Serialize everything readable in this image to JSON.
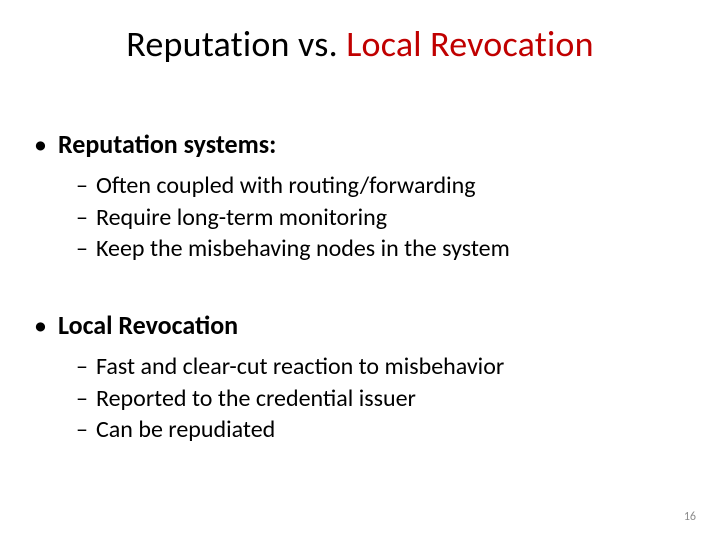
{
  "title": {
    "part1": "Reputation vs. ",
    "part2": "Local Revocation",
    "color_part1": "#000000",
    "color_part2": "#c00000",
    "fontsize": 36
  },
  "sections": [
    {
      "header": "Reputation systems:",
      "items": [
        "Often coupled with routing/forwarding",
        "Require long-term monitoring",
        "Keep the misbehaving nodes in the system"
      ]
    },
    {
      "header": "Local Revocation",
      "items": [
        "Fast and clear-cut reaction to misbehavior",
        "Reported to the credential issuer",
        "Can be repudiated"
      ]
    }
  ],
  "page_number": "16",
  "styles": {
    "background_color": "#ffffff",
    "text_color": "#000000",
    "accent_color": "#c00000",
    "page_num_color": "#8b8b8b",
    "header_fontsize": 26,
    "item_fontsize": 24,
    "page_num_fontsize": 12,
    "bullet_char": "•",
    "dash_char": "–"
  }
}
